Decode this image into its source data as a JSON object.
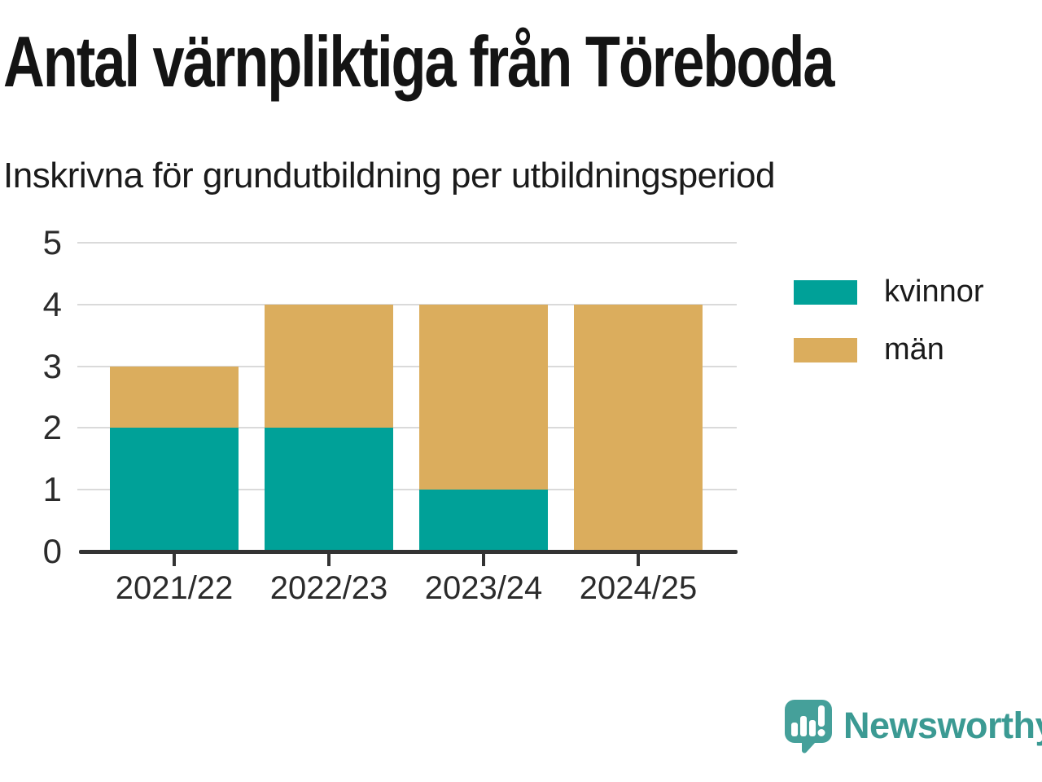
{
  "header": {
    "title": "Antal värnpliktiga från Töreboda",
    "subtitle": "Inskrivna för grundutbildning per utbildningsperiod"
  },
  "chart_data": {
    "type": "bar",
    "stacked": true,
    "title": "Antal värnpliktiga från Töreboda",
    "subtitle": "Inskrivna för grundutbildning per utbildningsperiod",
    "categories": [
      "2021/22",
      "2022/23",
      "2023/24",
      "2024/25"
    ],
    "series": [
      {
        "name": "kvinnor",
        "color": "#00A198",
        "values": [
          2,
          2,
          1,
          0
        ]
      },
      {
        "name": "män",
        "color": "#DBAD5D",
        "values": [
          1,
          2,
          3,
          4
        ]
      }
    ],
    "totals": [
      3,
      4,
      4,
      4
    ],
    "xlabel": "",
    "ylabel": "",
    "ylim": [
      0,
      5
    ],
    "yticks": [
      0,
      1,
      2,
      3,
      4,
      5
    ],
    "grid": "horizontal",
    "legend_position": "right"
  },
  "footer": {
    "logo_text": "Newsworthy"
  },
  "colors": {
    "kvinnor": "#00A198",
    "man": "#DBAD5D",
    "logo_teal": "#3B9A93",
    "logo_bubble": "#45A09A",
    "axis": "#333333",
    "grid": "#DADADA",
    "text": "#141414"
  }
}
